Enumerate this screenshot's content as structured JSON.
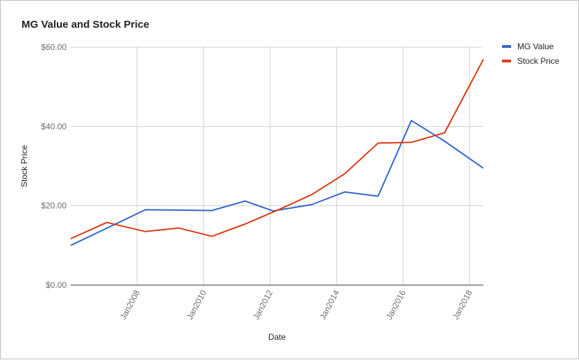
{
  "chart_data": {
    "type": "line",
    "title": "MG Value and Stock Price",
    "xlabel": "Date",
    "ylabel": "Stock Price",
    "x_ticks": [
      {
        "date": "2008-01-01",
        "label": "Jan2008"
      },
      {
        "date": "2010-01-01",
        "label": "Jan2010"
      },
      {
        "date": "2012-01-01",
        "label": "Jan2012"
      },
      {
        "date": "2014-01-01",
        "label": "Jan2014"
      },
      {
        "date": "2016-01-01",
        "label": "Jan2016"
      },
      {
        "date": "2018-01-01",
        "label": "Jan2018"
      }
    ],
    "y_ticks": [
      {
        "value": 0,
        "label": "$0.00"
      },
      {
        "value": 20,
        "label": "$20.00"
      },
      {
        "value": 40,
        "label": "$40.00"
      },
      {
        "value": 60,
        "label": "$60.00"
      }
    ],
    "xlim": [
      "2006-01-01",
      "2018-06-01"
    ],
    "ylim": [
      0,
      60
    ],
    "grid": true,
    "legend_position": "right",
    "series": [
      {
        "name": "MG Value",
        "color": "#3366cc",
        "points": [
          {
            "x": "2006-01-01",
            "y": 10.0
          },
          {
            "x": "2008-04-01",
            "y": 19.0
          },
          {
            "x": "2010-04-01",
            "y": 18.8
          },
          {
            "x": "2011-04-01",
            "y": 21.2
          },
          {
            "x": "2012-02-01",
            "y": 18.7
          },
          {
            "x": "2013-04-01",
            "y": 20.3
          },
          {
            "x": "2014-04-01",
            "y": 23.5
          },
          {
            "x": "2015-04-01",
            "y": 22.4
          },
          {
            "x": "2016-04-01",
            "y": 41.5
          },
          {
            "x": "2017-04-01",
            "y": 36.3
          },
          {
            "x": "2018-06-01",
            "y": 29.5
          }
        ]
      },
      {
        "name": "Stock Price",
        "color": "#dc3912",
        "points": [
          {
            "x": "2006-01-01",
            "y": 11.7
          },
          {
            "x": "2007-02-01",
            "y": 15.8
          },
          {
            "x": "2008-04-01",
            "y": 13.5
          },
          {
            "x": "2009-04-01",
            "y": 14.4
          },
          {
            "x": "2010-04-01",
            "y": 12.3
          },
          {
            "x": "2011-04-01",
            "y": 15.4
          },
          {
            "x": "2012-04-01",
            "y": 19.0
          },
          {
            "x": "2013-04-01",
            "y": 22.8
          },
          {
            "x": "2014-04-01",
            "y": 28.1
          },
          {
            "x": "2015-04-01",
            "y": 35.8
          },
          {
            "x": "2016-04-01",
            "y": 36.0
          },
          {
            "x": "2017-04-01",
            "y": 38.4
          },
          {
            "x": "2018-06-01",
            "y": 56.9
          }
        ]
      }
    ]
  }
}
